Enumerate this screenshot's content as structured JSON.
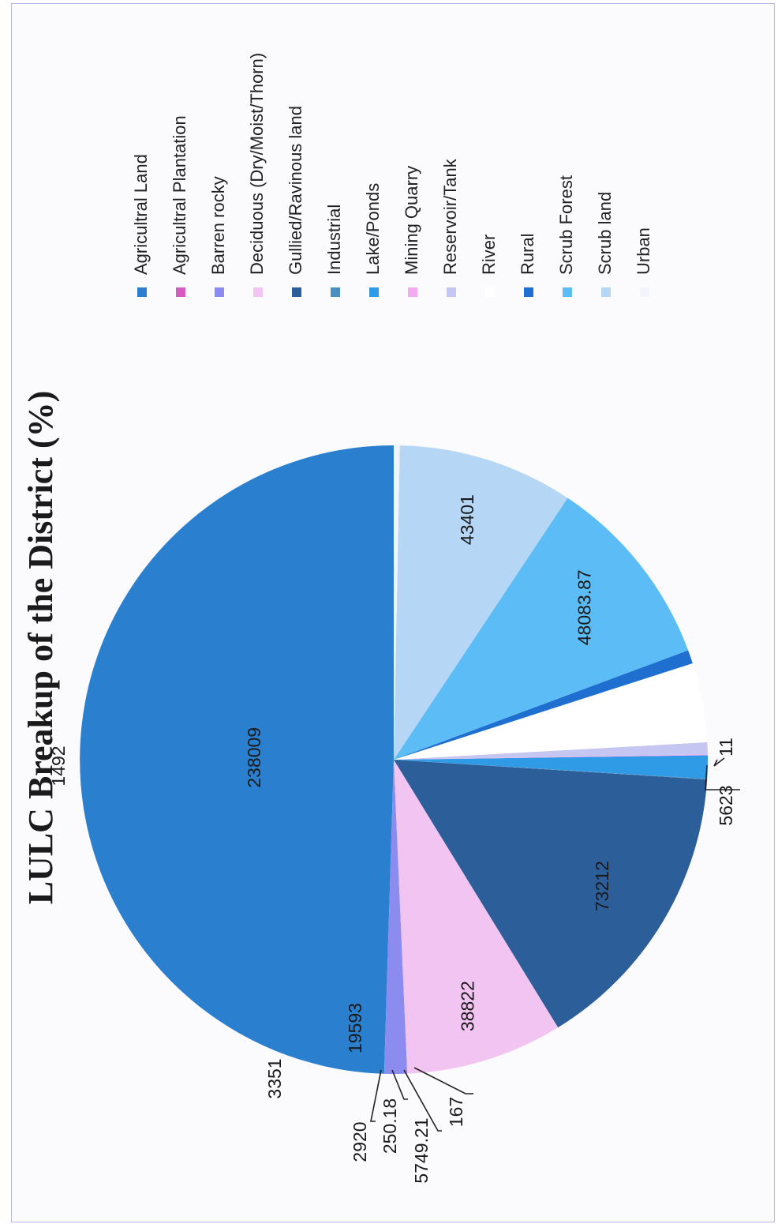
{
  "chart_data": {
    "type": "pie",
    "title": "LULC Breakup of the District (%)",
    "legend_position": "right",
    "categories": [
      "Agricultral Land",
      "Agricultral Plantation",
      "Barren rocky",
      "Deciduous (Dry/Moist/Thorn)",
      "Gullied/Ravinous land",
      "Industrial",
      "Lake/Ponds",
      "Mining Quarry",
      "Reservoir/Tank",
      "River",
      "Rural",
      "Scrub Forest",
      "Scrub land",
      "Urban"
    ],
    "values": [
      238009,
      11,
      5623,
      38822,
      73212,
      167,
      5749.21,
      250.18,
      2920,
      19593,
      3351,
      48083.87,
      43401,
      1492
    ],
    "data_labels": [
      "238009",
      "11",
      "5623",
      "38822",
      "73212",
      "167",
      "5749.21",
      "250.18",
      "2920",
      "19593",
      "3351",
      "48083.87",
      "43401",
      "1492"
    ],
    "colors": [
      "#2a7fcf",
      "#d45bbf",
      "#8c8cf0",
      "#f2c4f2",
      "#2c5f99",
      "#4a8fc2",
      "#2f9be6",
      "#f5a9ee",
      "#c6c6f2",
      "#ffffff",
      "#1f6fd0",
      "#5cbcf5",
      "#b5d7f5",
      "#f3f3fb"
    ]
  }
}
